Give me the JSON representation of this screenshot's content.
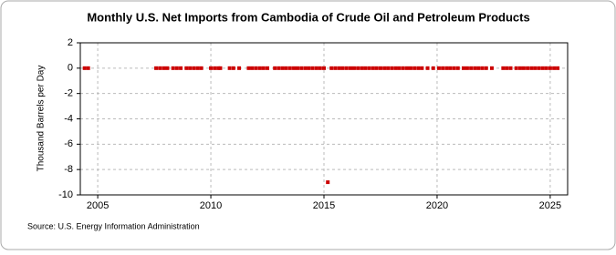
{
  "chart_data": {
    "type": "scatter",
    "title": "Monthly U.S. Net Imports from Cambodia of Crude Oil and Petroleum Products",
    "y_label": "Thousand Barrels per Day",
    "source": "Source: U.S. Energy Information Administration",
    "xlim": [
      2004.23,
      2025.77
    ],
    "ylim": [
      -10,
      2
    ],
    "xticks": [
      2005,
      2010,
      2015,
      2020,
      2025
    ],
    "yticks": [
      2,
      0,
      -2,
      -4,
      -6,
      -8,
      -10
    ],
    "grid": true,
    "series": [
      {
        "color": "#cc0000",
        "x": [
          2004.42,
          2004.58,
          2007.58,
          2007.75,
          2007.92,
          2008.08,
          2008.33,
          2008.5,
          2008.67,
          2008.92,
          2009.08,
          2009.25,
          2009.42,
          2009.58,
          2010.0,
          2010.17,
          2010.33,
          2010.42,
          2010.83,
          2011.0,
          2011.25,
          2011.67,
          2011.83,
          2012.0,
          2012.17,
          2012.33,
          2012.5,
          2012.83,
          2013.0,
          2013.17,
          2013.33,
          2013.5,
          2013.67,
          2013.83,
          2014.0,
          2014.17,
          2014.33,
          2014.5,
          2014.67,
          2014.83,
          2015.0,
          2015.17,
          2015.33,
          2015.5,
          2015.67,
          2015.83,
          2016.0,
          2016.17,
          2016.33,
          2016.5,
          2016.67,
          2016.83,
          2017.0,
          2017.17,
          2017.33,
          2017.5,
          2017.67,
          2017.83,
          2018.0,
          2018.17,
          2018.33,
          2018.5,
          2018.67,
          2018.83,
          2019.0,
          2019.17,
          2019.33,
          2019.58,
          2019.83,
          2020.08,
          2020.25,
          2020.42,
          2020.58,
          2020.75,
          2020.92,
          2021.17,
          2021.33,
          2021.5,
          2021.67,
          2021.83,
          2022.0,
          2022.17,
          2022.42,
          2022.92,
          2023.08,
          2023.25,
          2023.5,
          2023.67,
          2023.83,
          2024.0,
          2024.17,
          2024.33,
          2024.5,
          2024.67,
          2024.83,
          2025.0,
          2025.17,
          2025.33
        ],
        "values": [
          0,
          0,
          0,
          0,
          0,
          0,
          0,
          0,
          0,
          0,
          0,
          0,
          0,
          0,
          0,
          0,
          0,
          0,
          0,
          0,
          0,
          0,
          0,
          0,
          0,
          0,
          0,
          0,
          0,
          0,
          0,
          0,
          0,
          0,
          0,
          0,
          0,
          0,
          0,
          0,
          0,
          -9,
          0,
          0,
          0,
          0,
          0,
          0,
          0,
          0,
          0,
          0,
          0,
          0,
          0,
          0,
          0,
          0,
          0,
          0,
          0,
          0,
          0,
          0,
          0,
          0,
          0,
          0,
          0,
          0,
          0,
          0,
          0,
          0,
          0,
          0,
          0,
          0,
          0,
          0,
          0,
          0,
          0,
          0,
          0,
          0,
          0,
          0,
          0,
          0,
          0,
          0,
          0,
          0,
          0,
          0,
          0,
          0
        ]
      }
    ]
  }
}
